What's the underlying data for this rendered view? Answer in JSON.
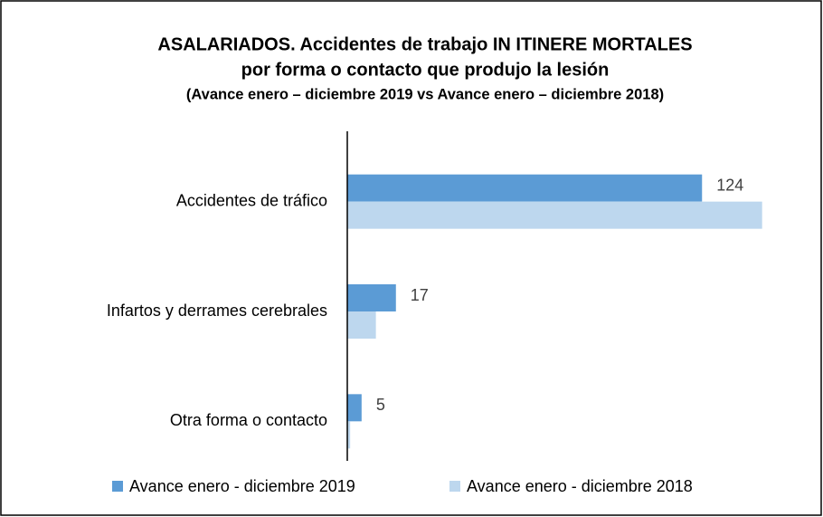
{
  "chart_data": {
    "type": "barh",
    "title": [
      "ASALARIADOS. Accidentes de trabajo IN ITINERE MORTALES",
      "por forma o contacto que produjo la lesión"
    ],
    "subtitle": "(Avance enero – diciembre 2019 vs Avance enero – diciembre 2018)",
    "categories": [
      "Accidentes de tráfico",
      "Infartos y derrames cerebrales",
      "Otra forma o contacto"
    ],
    "series": [
      {
        "name": "Avance enero - diciembre 2019",
        "color": "#5b9bd5",
        "values": [
          124,
          17,
          5
        ],
        "data_labels": true
      },
      {
        "name": "Avance enero - diciembre 2018",
        "color": "#bdd7ee",
        "values": [
          145,
          10,
          1
        ],
        "data_labels": false
      }
    ],
    "xlim": [
      0,
      147
    ],
    "legend": "bottom"
  }
}
